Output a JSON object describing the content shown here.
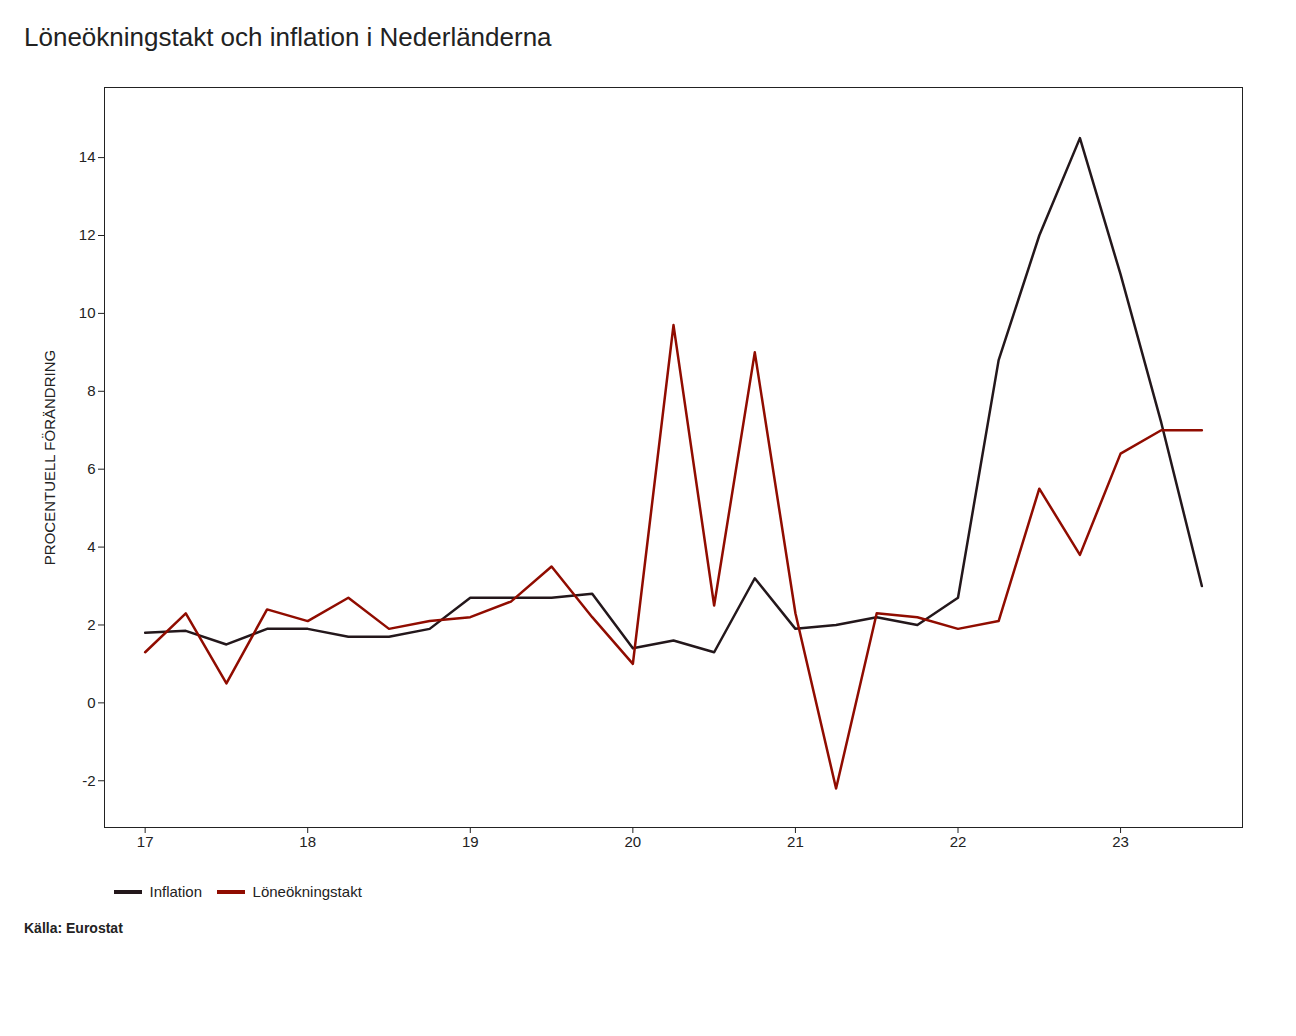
{
  "chart_data": {
    "type": "line",
    "title": "Löneökningstakt och inflation i Nederländerna",
    "ylabel": "PROCENTUELL FÖRÄNDRING",
    "source": "Källa: Eurostat",
    "x": [
      17.0,
      17.25,
      17.5,
      17.75,
      18.0,
      18.25,
      18.5,
      18.75,
      19.0,
      19.25,
      19.5,
      19.75,
      20.0,
      20.25,
      20.5,
      20.75,
      21.0,
      21.25,
      21.5,
      21.75,
      22.0,
      22.25,
      22.5,
      22.75,
      23.0,
      23.25,
      23.5
    ],
    "series": [
      {
        "name": "Inflation",
        "values": [
          1.8,
          1.85,
          1.5,
          1.9,
          1.9,
          1.7,
          1.7,
          1.9,
          2.7,
          2.7,
          2.7,
          2.8,
          1.4,
          1.6,
          1.3,
          3.2,
          1.9,
          2.0,
          2.2,
          2.0,
          2.7,
          8.8,
          12.0,
          14.5,
          11.0,
          7.2,
          3.0
        ]
      },
      {
        "name": "Löneökningstakt",
        "values": [
          1.3,
          2.3,
          0.5,
          2.4,
          2.1,
          2.7,
          1.9,
          2.1,
          2.2,
          2.6,
          3.5,
          2.2,
          1.0,
          9.7,
          2.5,
          9.0,
          2.3,
          -2.2,
          2.3,
          2.2,
          1.9,
          2.1,
          5.5,
          3.8,
          6.4,
          7.0,
          7.0
        ]
      }
    ],
    "xlim": [
      16.75,
      23.75
    ],
    "xticks": [
      17,
      18,
      19,
      20,
      21,
      22,
      23
    ],
    "ylim": [
      -3.2,
      15.8
    ],
    "yticks": [
      -2,
      0,
      2,
      4,
      6,
      8,
      10,
      12,
      14
    ],
    "grid": false,
    "legend": "bottom"
  }
}
